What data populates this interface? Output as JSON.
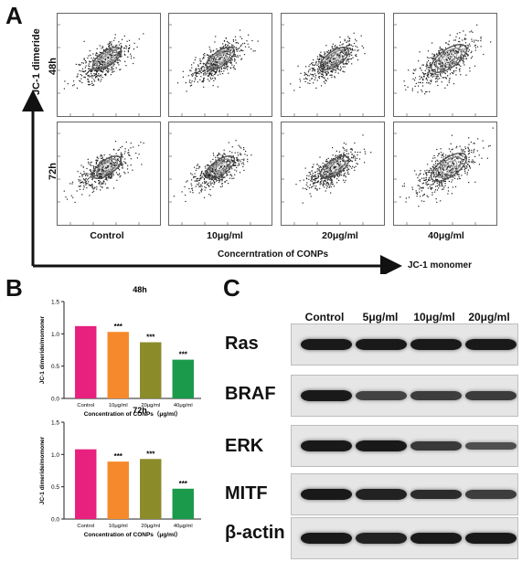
{
  "panel_labels": {
    "a": "A",
    "b": "B",
    "c": "C"
  },
  "panel_a": {
    "row_labels": [
      "48h",
      "72h"
    ],
    "column_labels": [
      "Control",
      "10μg/ml",
      "20μg/ml",
      "40μg/ml"
    ],
    "y_axis_label": "JC-1 dimeride",
    "x_axis_label": "Concerntration of CONPs",
    "x_axis_end_label": "JC-1  monomer"
  },
  "panel_b": {
    "ylabel": "JC-1 dimeride/momoner",
    "xlabel": "Concentration of CONPs（μg/ml）",
    "categories": [
      "Control",
      "10μg/ml",
      "20μg/ml",
      "40μg/ml"
    ],
    "bar_colors": [
      "#e8207e",
      "#f5892b",
      "#8b8b2a",
      "#1a9a4a"
    ],
    "significance": [
      "",
      "***",
      "***",
      "***"
    ]
  },
  "chart_data": [
    {
      "type": "bar",
      "title": "48h",
      "categories": [
        "Control",
        "10μg/ml",
        "20μg/ml",
        "40μg/ml"
      ],
      "values": [
        1.12,
        1.03,
        0.87,
        0.6
      ],
      "xlabel": "Concentration of CONPs（μg/ml）",
      "ylabel": "JC-1 dimeride/momoner",
      "ylim": [
        0,
        1.5
      ],
      "yticks": [
        "0.0",
        "0.5",
        "1.0",
        "1.5"
      ]
    },
    {
      "type": "bar",
      "title": "72h",
      "categories": [
        "Control",
        "10μg/ml",
        "20μg/ml",
        "40μg/ml"
      ],
      "values": [
        1.08,
        0.89,
        0.93,
        0.47
      ],
      "xlabel": "Concentration of CONPs（μg/ml）",
      "ylabel": "JC-1 dimeride/momoner",
      "ylim": [
        0,
        1.5
      ],
      "yticks": [
        "0.0",
        "0.5",
        "1.0",
        "1.5"
      ]
    }
  ],
  "panel_c": {
    "columns": [
      "Control",
      "5μg/ml",
      "10μg/ml",
      "20μg/ml"
    ],
    "rows": [
      {
        "label": "Ras",
        "intensities": [
          1.0,
          1.0,
          1.0,
          1.0
        ]
      },
      {
        "label": "BRAF",
        "intensities": [
          1.0,
          0.55,
          0.6,
          0.62
        ]
      },
      {
        "label": "ERK",
        "intensities": [
          1.0,
          1.0,
          0.65,
          0.4
        ]
      },
      {
        "label": "MITF",
        "intensities": [
          1.0,
          0.9,
          0.8,
          0.6
        ]
      },
      {
        "label": "β-actin",
        "intensities": [
          1.0,
          0.9,
          1.0,
          1.0
        ]
      }
    ]
  }
}
